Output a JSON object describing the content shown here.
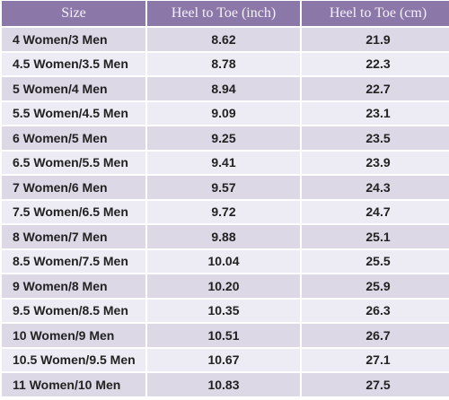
{
  "table": {
    "header": [
      "Size",
      "Heel to Toe (inch)",
      "Heel to Toe (cm)"
    ],
    "rows": [
      [
        "4 Women/3 Men",
        "8.62",
        "21.9"
      ],
      [
        "4.5 Women/3.5 Men",
        "8.78",
        "22.3"
      ],
      [
        "5 Women/4 Men",
        "8.94",
        "22.7"
      ],
      [
        "5.5 Women/4.5 Men",
        "9.09",
        "23.1"
      ],
      [
        "6 Women/5 Men",
        "9.25",
        "23.5"
      ],
      [
        "6.5 Women/5.5 Men",
        "9.41",
        "23.9"
      ],
      [
        "7 Women/6 Men",
        "9.57",
        "24.3"
      ],
      [
        "7.5 Women/6.5 Men",
        "9.72",
        "24.7"
      ],
      [
        "8 Women/7 Men",
        "9.88",
        "25.1"
      ],
      [
        "8.5 Women/7.5 Men",
        "10.04",
        "25.5"
      ],
      [
        "9 Women/8 Men",
        "10.20",
        "25.9"
      ],
      [
        "9.5 Women/8.5 Men",
        "10.35",
        "26.3"
      ],
      [
        "10 Women/9 Men",
        "10.51",
        "26.7"
      ],
      [
        "10.5 Women/9.5 Men",
        "10.67",
        "27.1"
      ],
      [
        "11 Women/10 Men",
        "10.83",
        "27.5"
      ]
    ]
  }
}
